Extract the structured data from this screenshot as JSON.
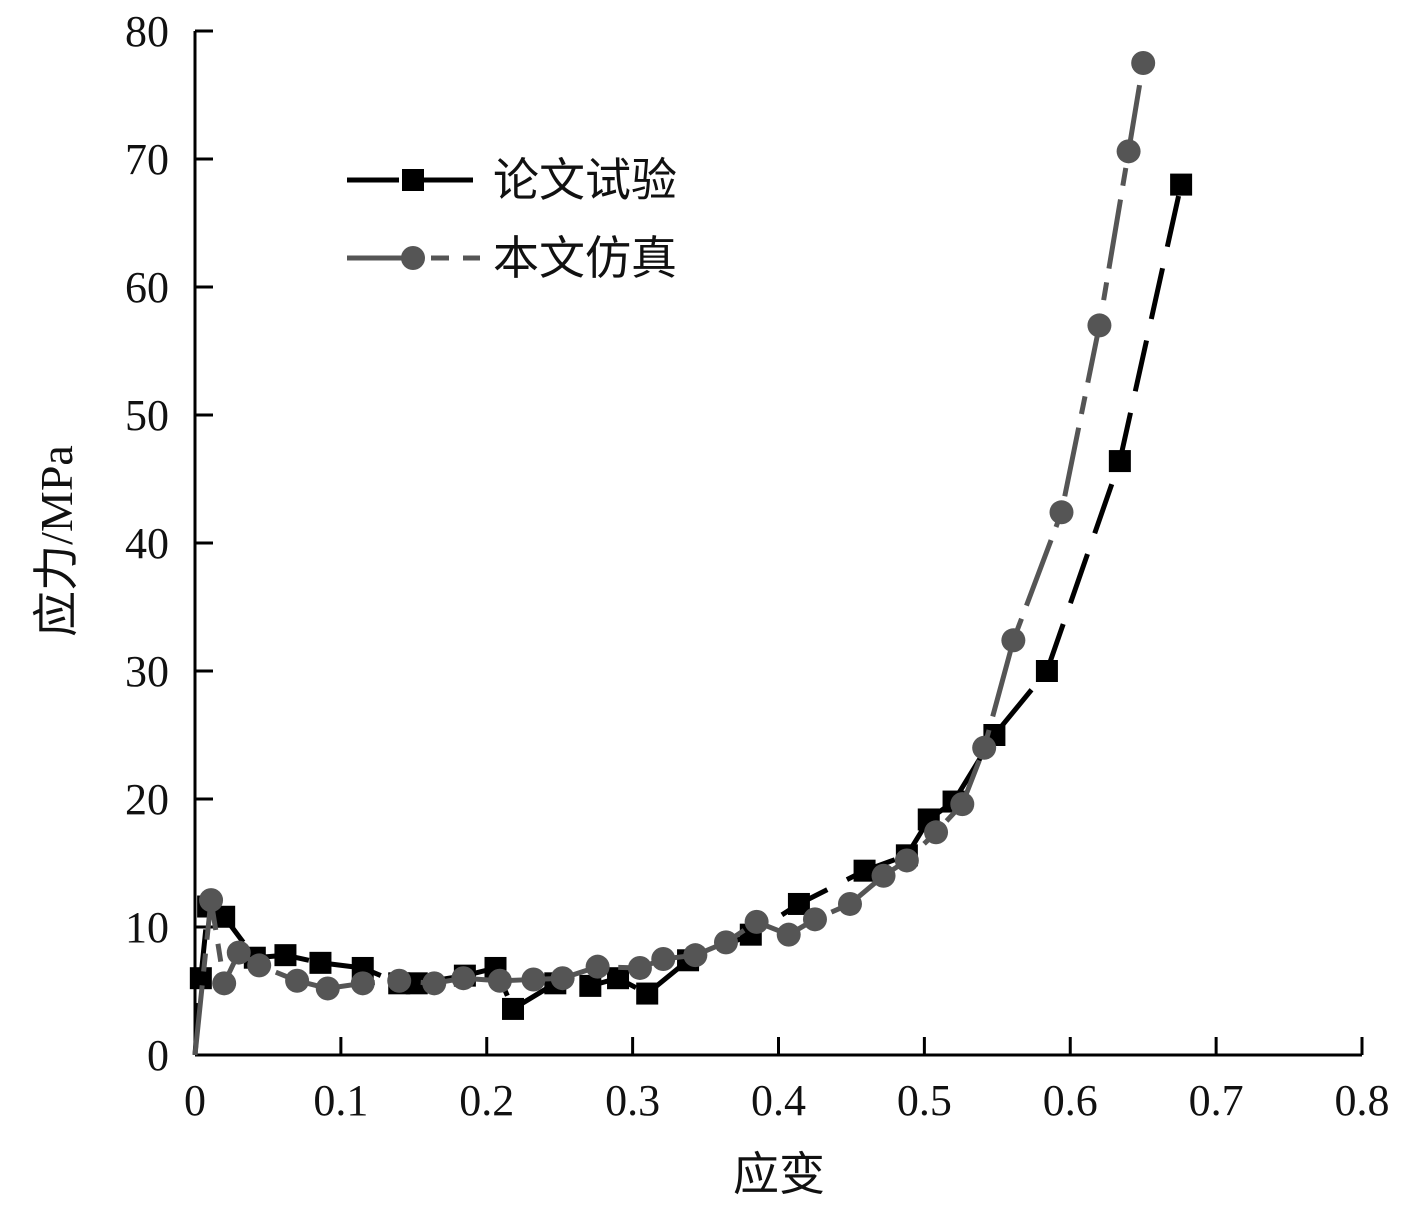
{
  "chart_data": {
    "type": "line",
    "xlabel": "应变",
    "ylabel": "应力/MPa",
    "xlim": [
      0,
      0.8
    ],
    "ylim": [
      0,
      80
    ],
    "x_ticks": [
      0,
      0.1,
      0.2,
      0.3,
      0.4,
      0.5,
      0.6,
      0.7,
      0.8
    ],
    "x_tick_labels": [
      "0",
      "0.1",
      "0.2",
      "0.3",
      "0.4",
      "0.5",
      "0.6",
      "0.7",
      "0.8"
    ],
    "y_ticks": [
      0,
      10,
      20,
      30,
      40,
      50,
      60,
      70,
      80
    ],
    "y_tick_labels": [
      "0",
      "10",
      "20",
      "30",
      "40",
      "50",
      "60",
      "70",
      "80"
    ],
    "grid": false,
    "legend": {
      "position": "top-left"
    },
    "series": [
      {
        "name": "论文试验",
        "color": "#000000",
        "marker": "square",
        "line_style": "dashed",
        "points": [
          [
            0.0,
            0.0
          ],
          [
            0.004,
            6.0
          ],
          [
            0.009,
            11.6
          ],
          [
            0.02,
            10.8
          ],
          [
            0.041,
            7.6
          ],
          [
            0.062,
            7.8
          ],
          [
            0.086,
            7.2
          ],
          [
            0.115,
            6.8
          ],
          [
            0.14,
            5.6
          ],
          [
            0.152,
            5.6
          ],
          [
            0.185,
            6.2
          ],
          [
            0.206,
            6.8
          ],
          [
            0.218,
            3.6
          ],
          [
            0.247,
            5.6
          ],
          [
            0.271,
            5.4
          ],
          [
            0.29,
            6.0
          ],
          [
            0.31,
            4.8
          ],
          [
            0.338,
            7.4
          ],
          [
            0.381,
            9.4
          ],
          [
            0.414,
            11.8
          ],
          [
            0.459,
            14.4
          ],
          [
            0.488,
            15.6
          ],
          [
            0.503,
            18.4
          ],
          [
            0.52,
            19.8
          ],
          [
            0.548,
            25.0
          ],
          [
            0.584,
            30.0
          ],
          [
            0.634,
            46.4
          ],
          [
            0.676,
            68.0
          ]
        ]
      },
      {
        "name": "本文仿真",
        "color": "#555555",
        "marker": "circle",
        "line_style": "long-dash-dot",
        "points": [
          [
            0.0,
            0.0
          ],
          [
            0.011,
            12.1
          ],
          [
            0.02,
            5.6
          ],
          [
            0.03,
            8.0
          ],
          [
            0.044,
            7.0
          ],
          [
            0.07,
            5.8
          ],
          [
            0.091,
            5.2
          ],
          [
            0.115,
            5.6
          ],
          [
            0.14,
            5.8
          ],
          [
            0.164,
            5.6
          ],
          [
            0.184,
            6.0
          ],
          [
            0.209,
            5.8
          ],
          [
            0.232,
            5.9
          ],
          [
            0.252,
            6.0
          ],
          [
            0.276,
            6.9
          ],
          [
            0.305,
            6.8
          ],
          [
            0.321,
            7.5
          ],
          [
            0.343,
            7.8
          ],
          [
            0.364,
            8.8
          ],
          [
            0.385,
            10.4
          ],
          [
            0.407,
            9.4
          ],
          [
            0.425,
            10.6
          ],
          [
            0.449,
            11.8
          ],
          [
            0.472,
            14.0
          ],
          [
            0.488,
            15.2
          ],
          [
            0.508,
            17.4
          ],
          [
            0.526,
            19.6
          ],
          [
            0.541,
            24.0
          ],
          [
            0.561,
            32.4
          ],
          [
            0.594,
            42.4
          ],
          [
            0.62,
            57.0
          ],
          [
            0.64,
            70.6
          ],
          [
            0.65,
            77.5
          ]
        ]
      }
    ]
  }
}
